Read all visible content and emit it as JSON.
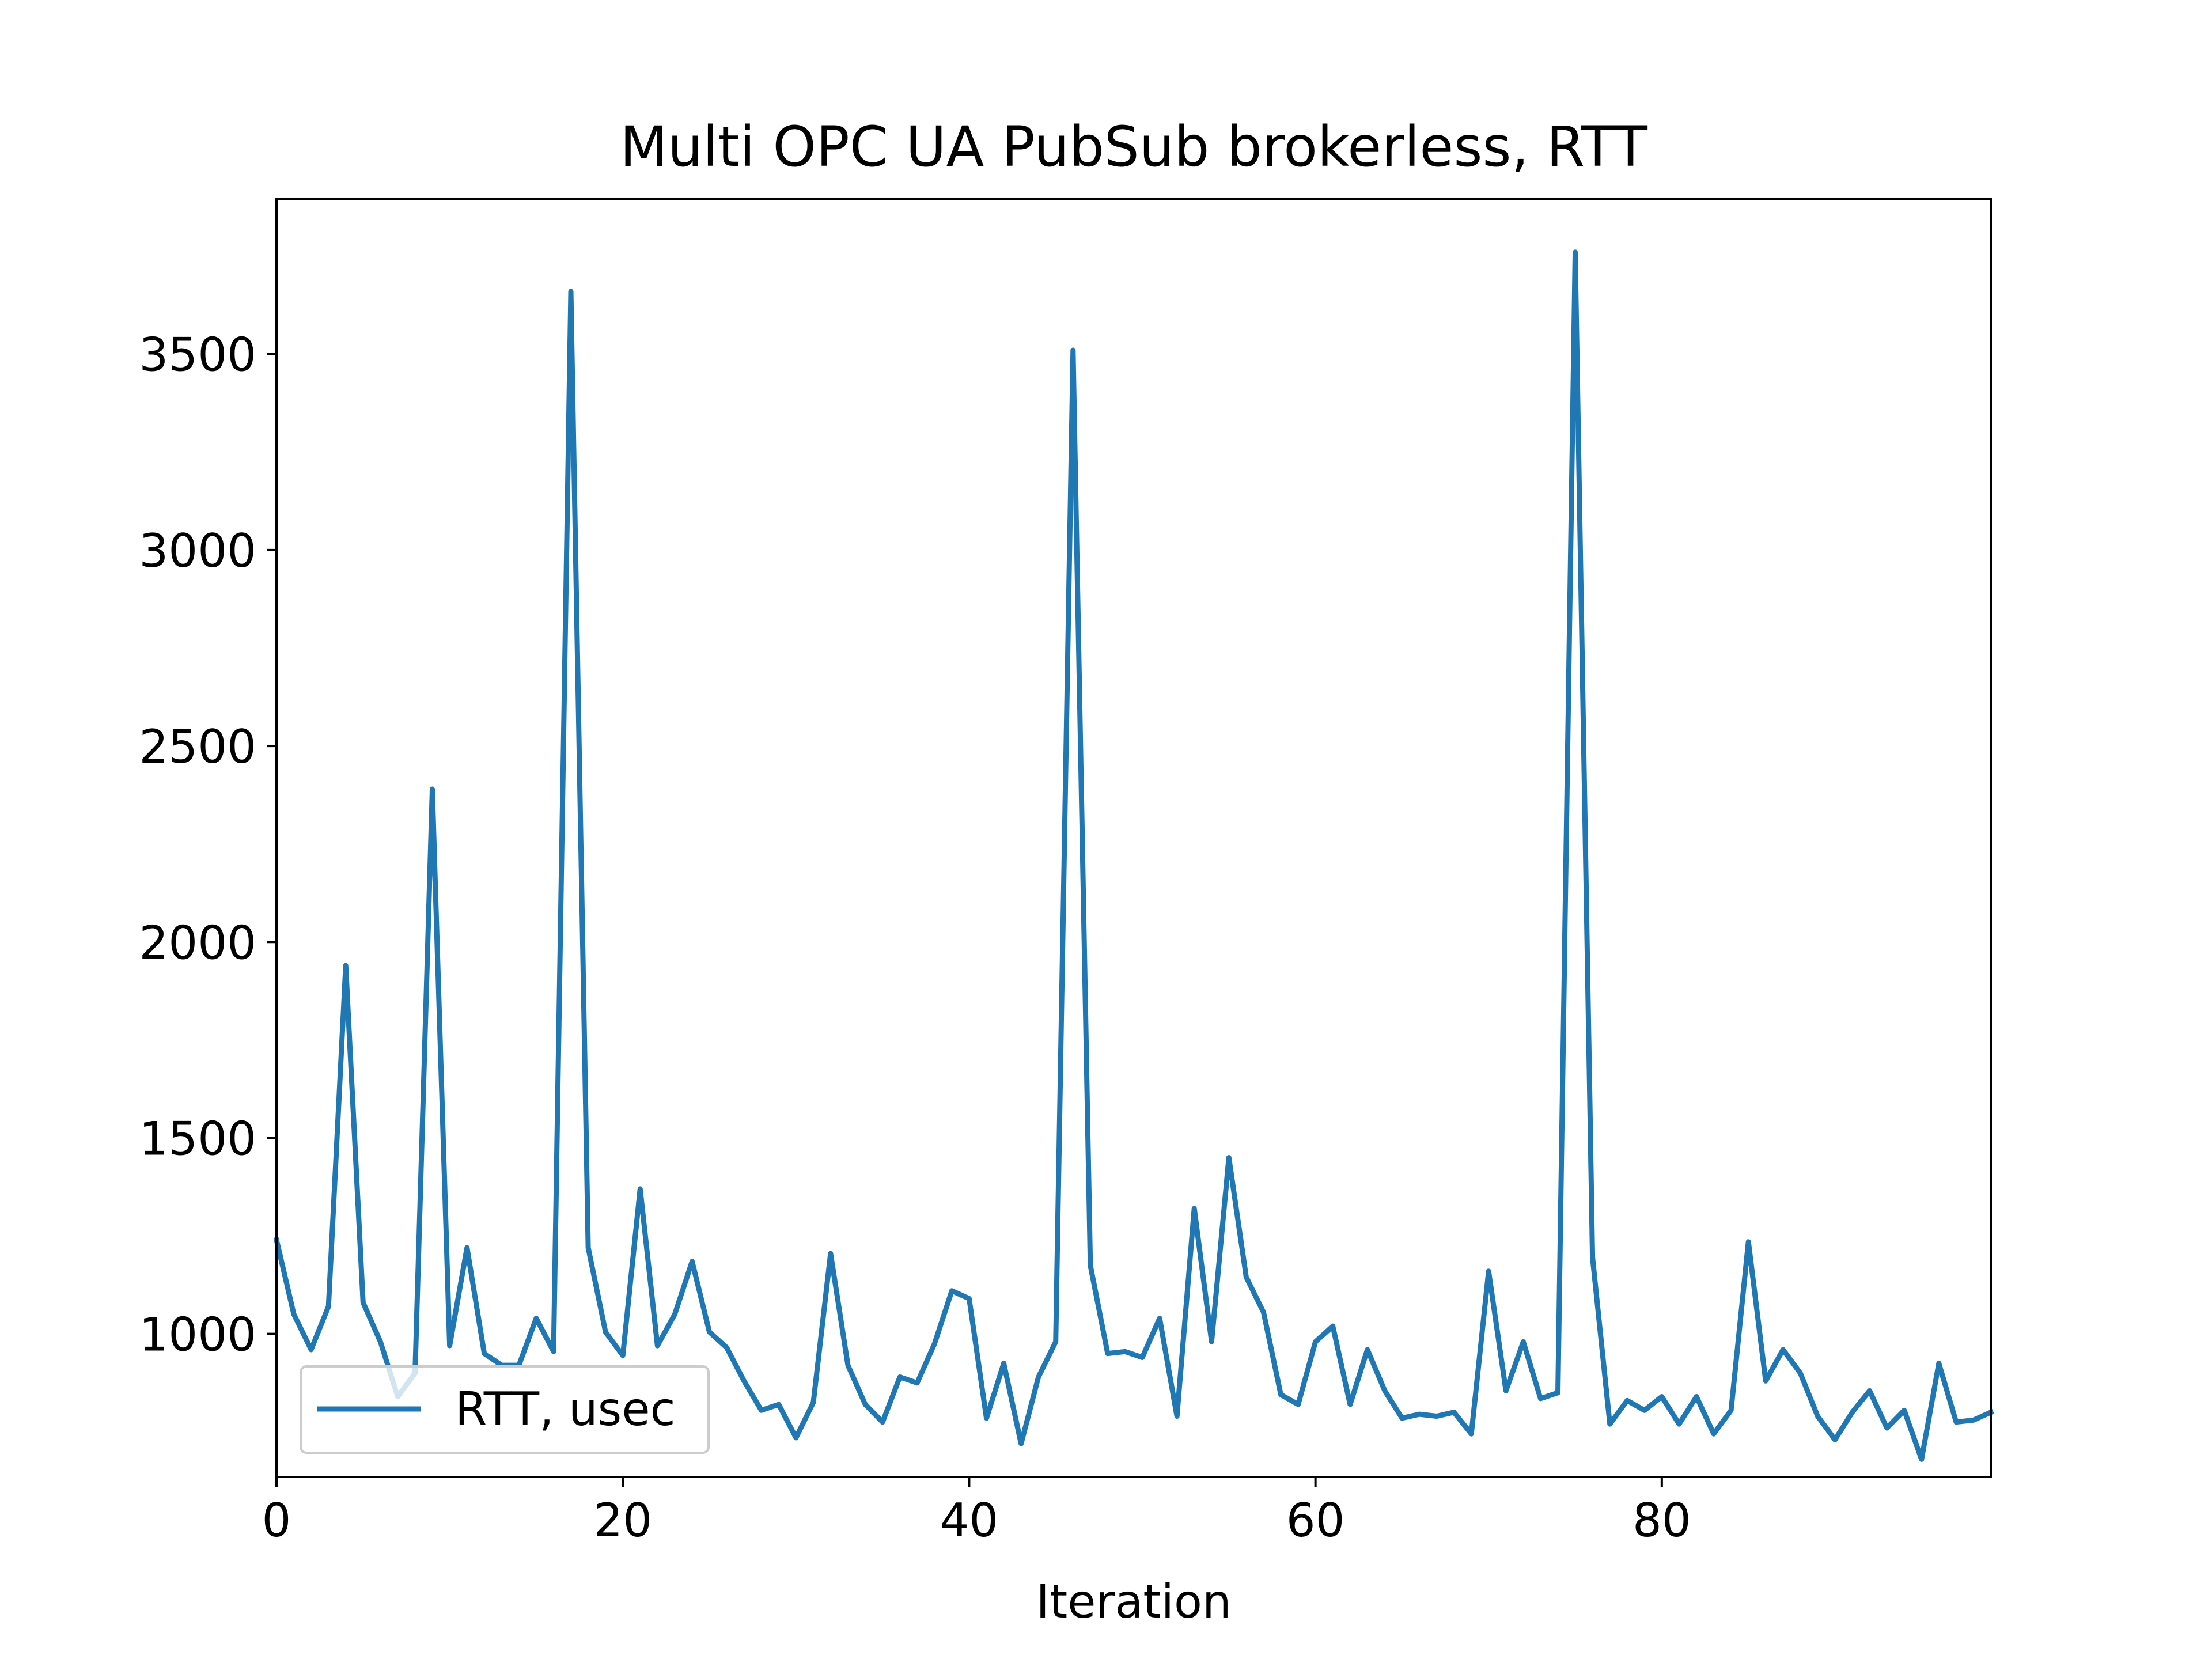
{
  "chart_data": {
    "type": "line",
    "title": "Multi OPC UA PubSub brokerless, RTT",
    "xlabel": "Iteration",
    "ylabel": "",
    "xlim": [
      0,
      99
    ],
    "ylim": [
      635,
      3895
    ],
    "x_ticks": [
      0,
      20,
      40,
      60,
      80
    ],
    "y_ticks": [
      1000,
      1500,
      2000,
      2500,
      3000,
      3500
    ],
    "grid": false,
    "legend_position": "lower left",
    "series": [
      {
        "name": "RTT, usec",
        "color": "#1f77b4",
        "x": [
          0,
          1,
          2,
          3,
          4,
          5,
          6,
          7,
          8,
          9,
          10,
          11,
          12,
          13,
          14,
          15,
          16,
          17,
          18,
          19,
          20,
          21,
          22,
          23,
          24,
          25,
          26,
          27,
          28,
          29,
          30,
          31,
          32,
          33,
          34,
          35,
          36,
          37,
          38,
          39,
          40,
          41,
          42,
          43,
          44,
          45,
          46,
          47,
          48,
          49,
          50,
          51,
          52,
          53,
          54,
          55,
          56,
          57,
          58,
          59,
          60,
          61,
          62,
          63,
          64,
          65,
          66,
          67,
          68,
          69,
          70,
          71,
          72,
          73,
          74,
          75,
          76,
          77,
          78,
          79,
          80,
          81,
          82,
          83,
          84,
          85,
          86,
          87,
          88,
          89,
          90,
          91,
          92,
          93,
          94,
          95,
          96,
          97,
          98,
          99
        ],
        "values": [
          1240,
          1050,
          960,
          1070,
          1940,
          1080,
          980,
          840,
          900,
          2390,
          970,
          1220,
          950,
          920,
          920,
          1040,
          955,
          3660,
          1220,
          1005,
          945,
          1370,
          970,
          1050,
          1185,
          1005,
          965,
          880,
          805,
          820,
          735,
          825,
          1205,
          920,
          820,
          775,
          890,
          875,
          975,
          1110,
          1090,
          785,
          925,
          720,
          890,
          980,
          3510,
          1175,
          950,
          955,
          940,
          1040,
          790,
          1320,
          980,
          1450,
          1145,
          1055,
          845,
          820,
          980,
          1020,
          820,
          960,
          855,
          785,
          795,
          790,
          800,
          745,
          1160,
          855,
          980,
          835,
          850,
          3760,
          1195,
          770,
          830,
          805,
          840,
          770,
          840,
          745,
          805,
          1235,
          880,
          960,
          900,
          790,
          730,
          800,
          855,
          760,
          805,
          680,
          925,
          775,
          780,
          800
        ]
      }
    ]
  }
}
